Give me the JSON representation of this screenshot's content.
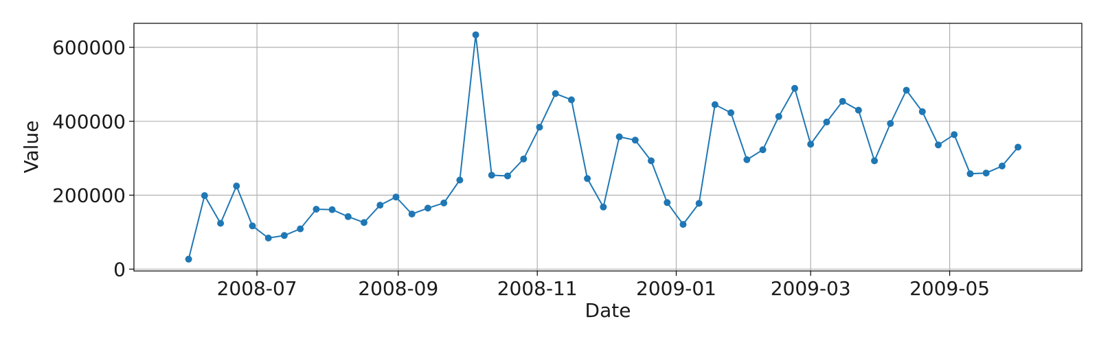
{
  "chart_data": {
    "type": "line",
    "xlabel": "Date",
    "ylabel": "Value",
    "grid": true,
    "marker": "circle",
    "color": "#1f77b4",
    "ylim": [
      -5000,
      665000
    ],
    "xlim": [
      "2008-05-08",
      "2009-06-28"
    ],
    "yticks": [
      0,
      200000,
      400000,
      600000
    ],
    "xticks": [
      "2008-07-01",
      "2008-09-01",
      "2008-11-01",
      "2009-01-01",
      "2009-03-01",
      "2009-05-01"
    ],
    "xtick_labels": [
      "2008-07",
      "2008-09",
      "2008-11",
      "2009-01",
      "2009-03",
      "2009-05"
    ],
    "series": [
      {
        "x": [
          "2008-06-01",
          "2008-06-08",
          "2008-06-15",
          "2008-06-22",
          "2008-06-29",
          "2008-07-06",
          "2008-07-13",
          "2008-07-20",
          "2008-07-27",
          "2008-08-03",
          "2008-08-10",
          "2008-08-17",
          "2008-08-24",
          "2008-08-31",
          "2008-09-07",
          "2008-09-14",
          "2008-09-21",
          "2008-09-28",
          "2008-10-05",
          "2008-10-12",
          "2008-10-19",
          "2008-10-26",
          "2008-11-02",
          "2008-11-09",
          "2008-11-16",
          "2008-11-23",
          "2008-11-30",
          "2008-12-07",
          "2008-12-14",
          "2008-12-21",
          "2008-12-28",
          "2009-01-04",
          "2009-01-11",
          "2009-01-18",
          "2009-01-25",
          "2009-02-01",
          "2009-02-08",
          "2009-02-15",
          "2009-02-22",
          "2009-03-01",
          "2009-03-08",
          "2009-03-15",
          "2009-03-22",
          "2009-03-29",
          "2009-04-05",
          "2009-04-12",
          "2009-04-19",
          "2009-04-26",
          "2009-05-03",
          "2009-05-10",
          "2009-05-17",
          "2009-05-24",
          "2009-05-31"
        ],
        "values": [
          27000,
          199000,
          124000,
          225000,
          117000,
          84000,
          91000,
          109000,
          162000,
          161000,
          142000,
          126000,
          173000,
          195000,
          149000,
          165000,
          179000,
          241000,
          634000,
          254000,
          252000,
          298000,
          384000,
          475000,
          458000,
          245000,
          168000,
          358000,
          349000,
          293000,
          180000,
          121000,
          178000,
          445000,
          423000,
          296000,
          323000,
          413000,
          489000,
          338000,
          398000,
          454000,
          430000,
          293000,
          394000,
          484000,
          426000,
          336000,
          364000,
          258000,
          260000,
          279000,
          330000
        ]
      }
    ]
  }
}
